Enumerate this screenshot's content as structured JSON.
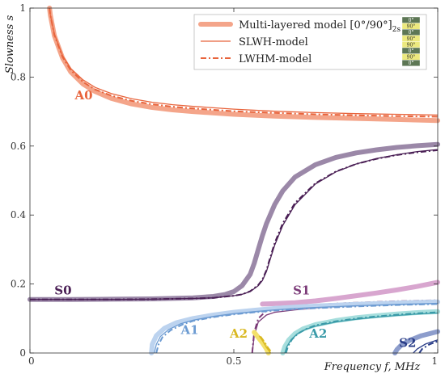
{
  "chart_data": {
    "type": "line",
    "xlabel": "Frequency  f, MHz",
    "ylabel": "Slowness  s",
    "xlim": [
      0,
      1
    ],
    "ylim": [
      0,
      1
    ],
    "x_ticks": [
      "0",
      "0.5",
      "1"
    ],
    "y_ticks": [
      "0",
      "0.2",
      "0.4",
      "0.6",
      "0.8",
      "1"
    ],
    "grid": false,
    "legend_position": "top-right",
    "legend": [
      {
        "label": "Multi-layered model [0°/90°]",
        "subscript": "2s",
        "style": "thick"
      },
      {
        "label": "SLWH-model",
        "style": "thin"
      },
      {
        "label": "LWHM-model",
        "style": "dash-dot"
      }
    ],
    "layup_badge": [
      "0°",
      "90°",
      "0°",
      "90°",
      "90°",
      "0°",
      "90°",
      "0°"
    ],
    "badge_colors": {
      "0°": "#5d7755",
      "90°": "#ece97e"
    },
    "modes": [
      {
        "name": "A0",
        "color": "#e8643c",
        "thick_color": "#f4a58a",
        "label_pos": {
          "x": 0.11,
          "y": 0.735
        },
        "multi": {
          "x": [
            0.048,
            0.05,
            0.06,
            0.08,
            0.1,
            0.13,
            0.16,
            0.2,
            0.25,
            0.3,
            0.35,
            0.4,
            0.5,
            0.6,
            0.7,
            0.8,
            0.9,
            1.0
          ],
          "y": [
            1.0,
            0.98,
            0.92,
            0.855,
            0.815,
            0.78,
            0.758,
            0.738,
            0.722,
            0.712,
            0.705,
            0.7,
            0.692,
            0.687,
            0.683,
            0.68,
            0.677,
            0.674
          ]
        },
        "slwh": {
          "x": [
            0.048,
            0.05,
            0.06,
            0.08,
            0.1,
            0.13,
            0.16,
            0.2,
            0.25,
            0.3,
            0.35,
            0.4,
            0.5,
            0.6,
            0.7,
            0.8,
            0.9,
            1.0
          ],
          "y": [
            1.0,
            0.98,
            0.925,
            0.862,
            0.825,
            0.792,
            0.77,
            0.752,
            0.737,
            0.727,
            0.72,
            0.715,
            0.707,
            0.701,
            0.697,
            0.694,
            0.692,
            0.69
          ]
        },
        "lwhm": {
          "x": [
            0.048,
            0.05,
            0.06,
            0.08,
            0.1,
            0.13,
            0.16,
            0.2,
            0.25,
            0.3,
            0.35,
            0.4,
            0.5,
            0.6,
            0.7,
            0.8,
            0.9,
            1.0
          ],
          "y": [
            1.0,
            0.98,
            0.922,
            0.858,
            0.82,
            0.786,
            0.764,
            0.746,
            0.731,
            0.721,
            0.714,
            0.709,
            0.701,
            0.696,
            0.692,
            0.689,
            0.687,
            0.685
          ]
        }
      },
      {
        "name": "S0",
        "color": "#4a1f55",
        "thick_color": "#9b88a8",
        "label_pos": {
          "x": 0.06,
          "y": 0.17
        },
        "multi": {
          "x": [
            0,
            0.1,
            0.2,
            0.3,
            0.4,
            0.45,
            0.48,
            0.5,
            0.52,
            0.54,
            0.55,
            0.56,
            0.57,
            0.58,
            0.6,
            0.62,
            0.65,
            0.7,
            0.75,
            0.8,
            0.85,
            0.9,
            0.95,
            1.0
          ],
          "y": [
            0.155,
            0.155,
            0.156,
            0.157,
            0.16,
            0.164,
            0.17,
            0.178,
            0.195,
            0.228,
            0.26,
            0.3,
            0.34,
            0.375,
            0.43,
            0.47,
            0.51,
            0.546,
            0.567,
            0.58,
            0.589,
            0.596,
            0.601,
            0.605
          ]
        },
        "slwh": {
          "x": [
            0,
            0.1,
            0.2,
            0.3,
            0.4,
            0.45,
            0.5,
            0.52,
            0.54,
            0.56,
            0.57,
            0.58,
            0.59,
            0.6,
            0.62,
            0.65,
            0.7,
            0.75,
            0.8,
            0.85,
            0.9,
            0.95,
            1.0
          ],
          "y": [
            0.155,
            0.155,
            0.155,
            0.156,
            0.158,
            0.16,
            0.166,
            0.17,
            0.178,
            0.195,
            0.21,
            0.236,
            0.275,
            0.312,
            0.37,
            0.43,
            0.49,
            0.525,
            0.548,
            0.564,
            0.575,
            0.584,
            0.59
          ]
        },
        "lwhm": {
          "x": [
            0,
            0.1,
            0.2,
            0.3,
            0.4,
            0.45,
            0.5,
            0.52,
            0.54,
            0.56,
            0.57,
            0.58,
            0.59,
            0.6,
            0.62,
            0.65,
            0.7,
            0.75,
            0.8,
            0.85,
            0.9,
            0.95,
            1.0
          ],
          "y": [
            0.155,
            0.155,
            0.155,
            0.156,
            0.158,
            0.16,
            0.166,
            0.17,
            0.179,
            0.197,
            0.213,
            0.24,
            0.28,
            0.318,
            0.376,
            0.435,
            0.492,
            0.526,
            0.548,
            0.563,
            0.574,
            0.582,
            0.588
          ]
        }
      },
      {
        "name": "S1",
        "color": "#7b3a78",
        "thick_color": "#d8a6cf",
        "label_pos": {
          "x": 0.645,
          "y": 0.17
        },
        "multi": {
          "x": [
            0.57,
            0.6,
            0.65,
            0.7,
            0.75,
            0.8,
            0.85,
            0.9,
            0.95,
            1.0
          ],
          "y": [
            0.142,
            0.143,
            0.146,
            0.151,
            0.158,
            0.166,
            0.174,
            0.183,
            0.193,
            0.205
          ]
        },
        "slwh": {
          "x": [
            0.545,
            0.55,
            0.56,
            0.58,
            0.6,
            0.65,
            0.7,
            0.8,
            0.9,
            1.0
          ],
          "y": [
            0.0,
            0.05,
            0.09,
            0.11,
            0.118,
            0.125,
            0.13,
            0.136,
            0.14,
            0.143
          ]
        },
        "lwhm": {
          "x": [
            0.545,
            0.55,
            0.56,
            0.58,
            0.6,
            0.65,
            0.7,
            0.8,
            0.9,
            1.0
          ],
          "y": [
            0.0,
            0.06,
            0.1,
            0.123,
            0.13,
            0.136,
            0.14,
            0.146,
            0.15,
            0.153
          ]
        }
      },
      {
        "name": "A1",
        "color": "#6c9bd2",
        "thick_color": "#bcd3ef",
        "label_pos": {
          "x": 0.37,
          "y": 0.055
        },
        "multi": {
          "x": [
            0.298,
            0.3,
            0.31,
            0.33,
            0.36,
            0.4,
            0.45,
            0.5,
            0.55,
            0.6,
            0.65,
            0.7,
            0.8,
            0.9,
            1.0
          ],
          "y": [
            0.0,
            0.025,
            0.05,
            0.072,
            0.088,
            0.1,
            0.11,
            0.118,
            0.124,
            0.129,
            0.133,
            0.136,
            0.141,
            0.145,
            0.148
          ]
        },
        "slwh": {
          "x": [
            0.305,
            0.31,
            0.32,
            0.34,
            0.37,
            0.4,
            0.45,
            0.5,
            0.55,
            0.6,
            0.65,
            0.7,
            0.8,
            0.9,
            1.0
          ],
          "y": [
            0.0,
            0.025,
            0.048,
            0.068,
            0.085,
            0.095,
            0.106,
            0.114,
            0.12,
            0.125,
            0.129,
            0.132,
            0.137,
            0.141,
            0.144
          ]
        },
        "lwhm": {
          "x": [
            0.31,
            0.315,
            0.325,
            0.345,
            0.375,
            0.4,
            0.45,
            0.5,
            0.55,
            0.6,
            0.65,
            0.7,
            0.8,
            0.9,
            1.0
          ],
          "y": [
            0.0,
            0.024,
            0.046,
            0.066,
            0.083,
            0.093,
            0.104,
            0.112,
            0.118,
            0.123,
            0.127,
            0.13,
            0.135,
            0.139,
            0.142
          ]
        }
      },
      {
        "name": "A2",
        "color": "#d9b820",
        "thick_color": "#f3e06a",
        "label_pos": {
          "x": 0.49,
          "y": 0.045
        },
        "multi": {
          "x": [
            0.55,
            0.56,
            0.57,
            0.58,
            0.585
          ],
          "y": [
            0.06,
            0.045,
            0.03,
            0.012,
            0.0
          ]
        },
        "slwh": {
          "x": [
            0.562,
            0.57,
            0.58,
            0.59
          ],
          "y": [
            0.05,
            0.036,
            0.016,
            0.0
          ]
        },
        "lwhm": {
          "x": [
            0.565,
            0.574,
            0.584,
            0.594
          ],
          "y": [
            0.048,
            0.034,
            0.015,
            0.0
          ]
        }
      },
      {
        "name": "A2",
        "color": "#3a9aa8",
        "thick_color": "#a6dedd",
        "label_pos": {
          "x": 0.685,
          "y": 0.045
        },
        "multi": {
          "x": [
            0.62,
            0.625,
            0.635,
            0.65,
            0.67,
            0.7,
            0.75,
            0.8,
            0.85,
            0.9,
            0.95,
            1.0
          ],
          "y": [
            0.0,
            0.018,
            0.038,
            0.056,
            0.07,
            0.082,
            0.094,
            0.102,
            0.108,
            0.113,
            0.117,
            0.12
          ]
        },
        "slwh": {
          "x": [
            0.625,
            0.63,
            0.64,
            0.655,
            0.675,
            0.7,
            0.75,
            0.8,
            0.85,
            0.9,
            0.95,
            1.0
          ],
          "y": [
            0.0,
            0.018,
            0.038,
            0.055,
            0.068,
            0.078,
            0.09,
            0.098,
            0.104,
            0.109,
            0.113,
            0.116
          ]
        },
        "lwhm": {
          "x": [
            0.628,
            0.633,
            0.643,
            0.658,
            0.678,
            0.7,
            0.75,
            0.8,
            0.85,
            0.9,
            0.95,
            1.0
          ],
          "y": [
            0.0,
            0.02,
            0.04,
            0.057,
            0.07,
            0.08,
            0.092,
            0.1,
            0.106,
            0.111,
            0.115,
            0.118
          ]
        }
      },
      {
        "name": "S2",
        "color": "#2a3d88",
        "thick_color": "#8d9dcc",
        "label_pos": {
          "x": 0.905,
          "y": 0.018
        },
        "multi": {
          "x": [
            0.895,
            0.9,
            0.91,
            0.93,
            0.96,
            1.0
          ],
          "y": [
            0.0,
            0.01,
            0.022,
            0.036,
            0.05,
            0.062
          ]
        },
        "slwh": {
          "x": [
            0.94,
            0.95,
            0.97,
            1.0
          ],
          "y": [
            0.0,
            0.012,
            0.026,
            0.038
          ]
        },
        "lwhm": {
          "x": [
            0.955,
            0.962,
            0.98,
            1.0
          ],
          "y": [
            0.0,
            0.012,
            0.025,
            0.034
          ]
        }
      }
    ]
  }
}
